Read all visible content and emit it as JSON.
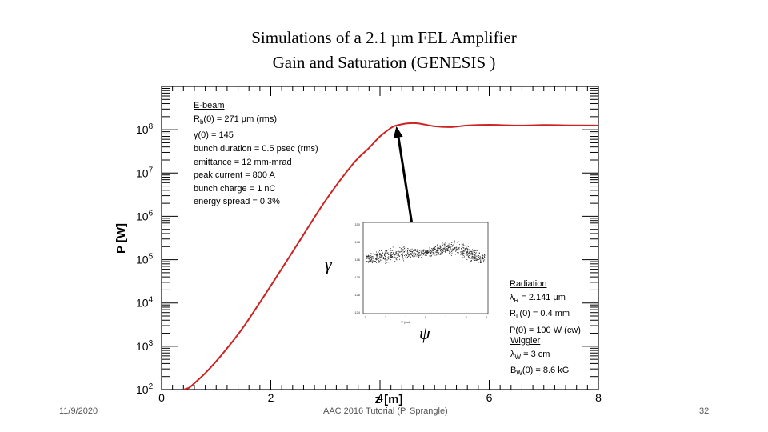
{
  "title_lines": [
    "Simulations of a 2.1 µm FEL Amplifier",
    "Gain and Saturation (GENESIS )"
  ],
  "chart_data": {
    "type": "line",
    "title": "",
    "xlabel": "z [m]",
    "ylabel": "P [W]",
    "xlim": [
      0,
      8
    ],
    "ylim_log10": [
      2,
      9
    ],
    "y_scale": "log",
    "x_ticks": [
      0,
      2,
      4,
      6,
      8
    ],
    "y_ticks": [
      "10^2",
      "10^3",
      "10^4",
      "10^5",
      "10^6",
      "10^7",
      "10^8"
    ],
    "y_tick_bases": [
      "10",
      "10",
      "10",
      "10",
      "10",
      "10",
      "10"
    ],
    "y_tick_exps": [
      "2",
      "3",
      "4",
      "5",
      "6",
      "7",
      "8"
    ],
    "grid": false,
    "series": [
      {
        "color": "#cc2222",
        "x": [
          0.4,
          0.5,
          0.6,
          0.8,
          1.0,
          1.2,
          1.5,
          2.0,
          2.5,
          3.0,
          3.5,
          3.8,
          4.0,
          4.2,
          4.3,
          4.5,
          4.7,
          5.0,
          5.3,
          5.6,
          6.0,
          6.5,
          7.0,
          7.5,
          8.0
        ],
        "y": [
          100,
          110,
          140,
          240,
          450,
          900,
          2800,
          25000,
          240000,
          2300000,
          16000000,
          38000000,
          70000000,
          110000000,
          125000000,
          140000000,
          140000000,
          120000000,
          115000000,
          125000000,
          130000000,
          125000000,
          128000000,
          126000000,
          125000000
        ]
      }
    ],
    "annotation_arrow": {
      "from": [
        4.6,
        500000
      ],
      "to": [
        4.3,
        120000000
      ]
    }
  },
  "inset": {
    "x_label": "ψ",
    "y_label": "γ",
    "axis_caption": "Ψ [rad]",
    "y_ticks": [
      "150",
      "148",
      "146",
      "128",
      "126",
      "124"
    ],
    "x_ticks": [
      "-3",
      "-2",
      "-1",
      "0",
      "1",
      "2",
      "3"
    ]
  },
  "ebeam": {
    "header": "E-beam",
    "lines": [
      "R_b(0) = 271 μm (rms)",
      "γ(0) = 145",
      "bunch duration = 0.5 psec (rms)",
      "emittance = 12 mm-mrad",
      "peak current = 800 A",
      "bunch charge = 1 nC",
      "energy spread = 0.3%"
    ]
  },
  "radiation": {
    "header": "Radiation",
    "lines": [
      "λ_R = 2.141 μm",
      "R_L(0) = 0.4  mm",
      "P(0) = 100 W (cw)"
    ]
  },
  "wiggler": {
    "header": "Wiggler",
    "lines": [
      "λ_W = 3 cm",
      "B_W(0) = 8.6 kG"
    ]
  },
  "footer": {
    "date": "11/9/2020",
    "center": "AAC 2016 Tutorial (P. Sprangle)",
    "page": "32"
  },
  "colors": {
    "curve": "#cc2222",
    "axes": "#000000"
  }
}
